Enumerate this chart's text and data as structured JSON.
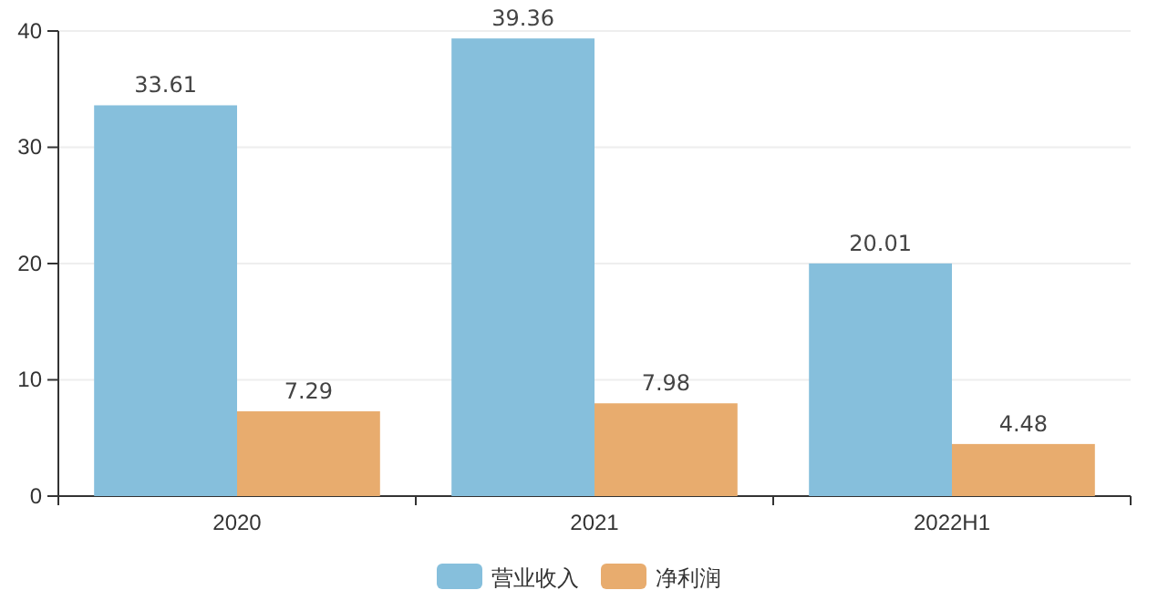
{
  "chart_data": {
    "type": "bar",
    "categories": [
      "2020",
      "2021",
      "2022H1"
    ],
    "series": [
      {
        "name": "营业收入",
        "color": "#86bfdc",
        "values": [
          33.61,
          39.36,
          20.01
        ]
      },
      {
        "name": "净利润",
        "color": "#e8ac6e",
        "values": [
          7.29,
          7.98,
          4.48
        ]
      }
    ],
    "ylim": [
      0,
      40
    ],
    "yticks": [
      0,
      10,
      20,
      30,
      40
    ],
    "grid": "y",
    "legend": "bottom",
    "data_labels": true
  }
}
